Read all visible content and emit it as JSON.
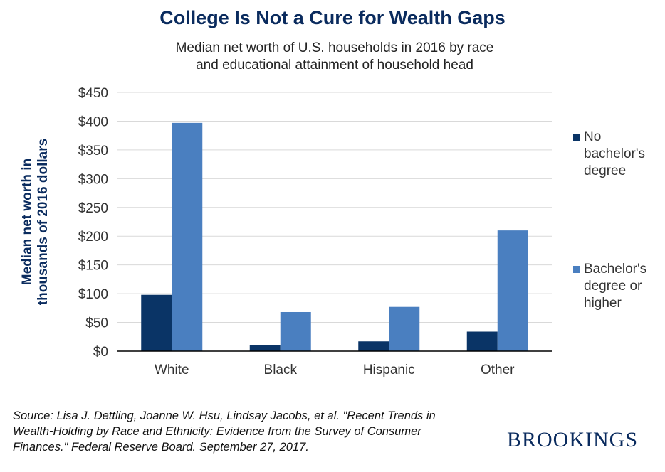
{
  "header": {
    "title": "College Is Not a Cure for Wealth Gaps",
    "subtitle_line1": "Median net worth of U.S. households in 2016 by race",
    "subtitle_line2": "and educational attainment of household head"
  },
  "chart_data": {
    "type": "bar",
    "title": "College Is Not a Cure for Wealth Gaps",
    "subtitle": "Median net worth of U.S. households in 2016 by race and educational attainment of household head",
    "categories": [
      "White",
      "Black",
      "Hispanic",
      "Other"
    ],
    "series": [
      {
        "name": "No bachelor's degree",
        "values": [
          98,
          11,
          17,
          34
        ],
        "color": "#0a3466"
      },
      {
        "name": "Bachelor's degree or higher",
        "values": [
          397,
          68,
          77,
          210
        ],
        "color": "#4a7fc0"
      }
    ],
    "ylabel_line1": "Median net worth in",
    "ylabel_line2": "thousands of 2016 dollars",
    "ylim": [
      0,
      450
    ],
    "yticks": [
      0,
      50,
      100,
      150,
      200,
      250,
      300,
      350,
      400,
      450
    ],
    "ytick_labels": [
      "$0",
      "$50",
      "$100",
      "$150",
      "$200",
      "$250",
      "$300",
      "$350",
      "$400",
      "$450"
    ],
    "grid": true,
    "legend_position": "right",
    "legend": [
      {
        "lines": [
          "No",
          "bachelor's",
          "degree"
        ]
      },
      {
        "lines": [
          "Bachelor's",
          "degree or",
          "higher"
        ]
      }
    ]
  },
  "footer": {
    "source_line1": "Source: Lisa J. Dettling, Joanne W. Hsu, Lindsay Jacobs, et al. \"Recent Trends in",
    "source_line2": "Wealth-Holding by Race and Ethnicity: Evidence from the Survey of Consumer",
    "source_line3": "Finances.\" Federal Reserve Board. September 27, 2017.",
    "brand": "BROOKINGS"
  }
}
